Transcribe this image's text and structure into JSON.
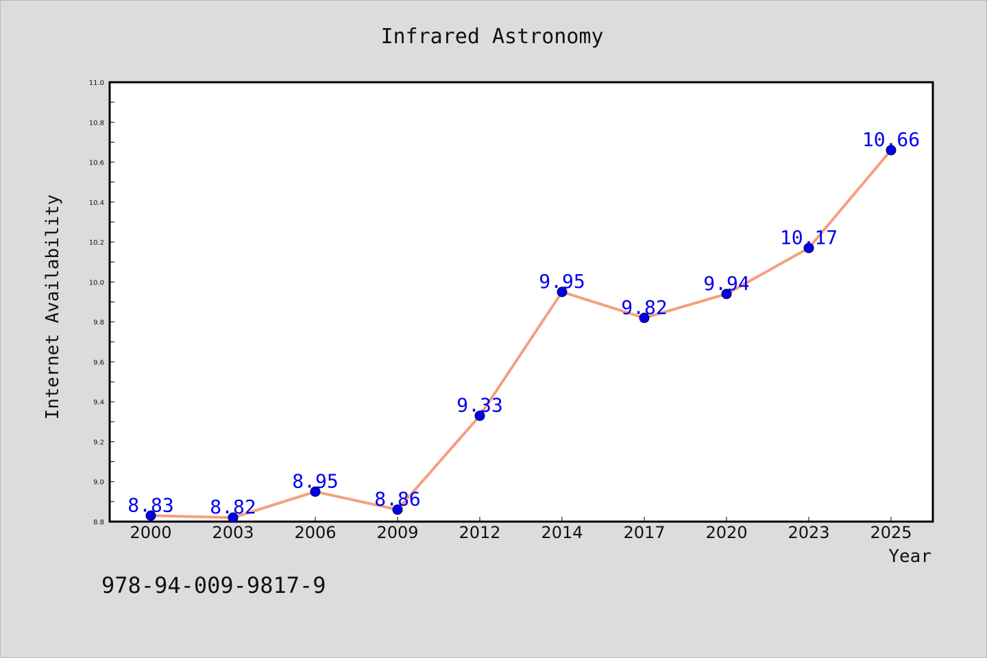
{
  "chart_data": {
    "type": "line",
    "title": "Infrared Astronomy",
    "xlabel": "Year",
    "ylabel": "Internet Availability",
    "categories": [
      "2000",
      "2003",
      "2006",
      "2009",
      "2012",
      "2014",
      "2017",
      "2020",
      "2023",
      "2025"
    ],
    "series": [
      {
        "values": [
          8.83,
          8.82,
          8.95,
          8.86,
          9.33,
          9.95,
          9.82,
          9.94,
          10.17,
          10.66
        ]
      }
    ],
    "data_labels": [
      "8.83",
      "8.82",
      "8.95",
      "8.86",
      "9.33",
      "9.95",
      "9.82",
      "9.94",
      "10.17",
      "10.66"
    ],
    "ylim": [
      8.8,
      11.0
    ],
    "y_ticks": [
      "8.8",
      "9.0",
      "9.2",
      "9.4",
      "9.6",
      "9.8",
      "10.0",
      "10.2",
      "10.4",
      "10.6",
      "10.8",
      "11.0"
    ],
    "grid": false,
    "colors": {
      "line": "#f4a07e",
      "marker": "#0000ee",
      "label": "#0000ee",
      "plot_bg": "#ffffff",
      "page_bg": "#dcdcdc"
    }
  },
  "footer": {
    "code": "978-94-009-9817-9"
  }
}
